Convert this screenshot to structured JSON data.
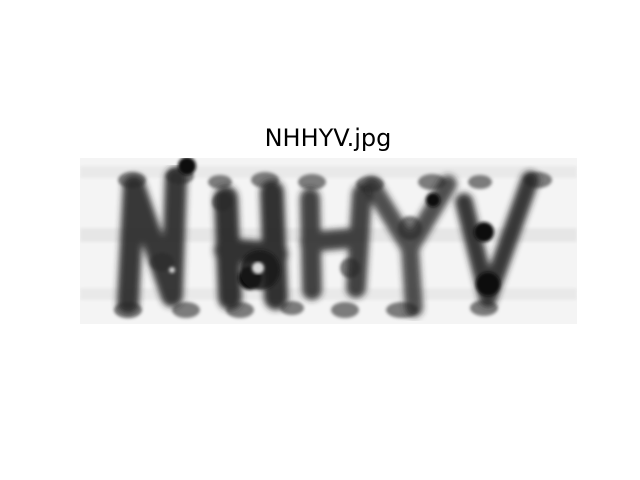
{
  "figure": {
    "title": "NHHYV.jpg"
  },
  "captcha": {
    "text": "NHHYV",
    "colors": {
      "background": "#f4f4f4",
      "ink": "#262626",
      "dot": "#7c7c7c"
    }
  }
}
